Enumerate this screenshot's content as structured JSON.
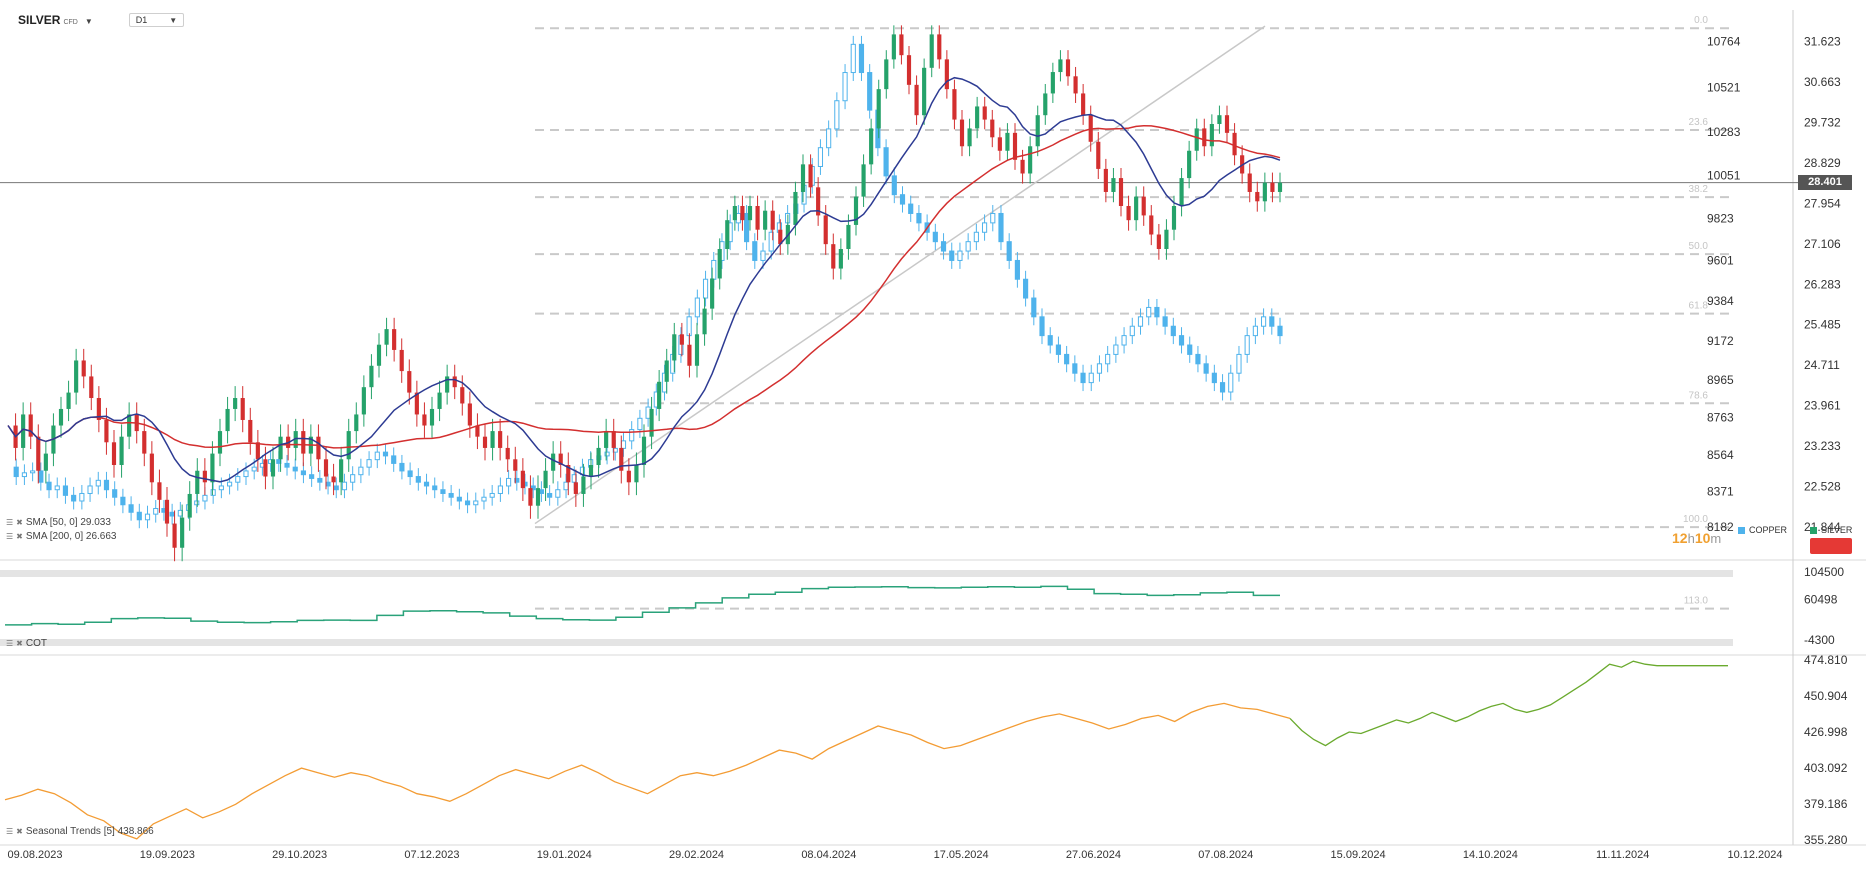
{
  "header": {
    "symbol": "SILVER",
    "symbol_tag": "CFD",
    "timeframe": "D1"
  },
  "indicators": {
    "sma50": {
      "label": "SMA [50, 0] 29.033",
      "color": "#2d3b93"
    },
    "sma200": {
      "label": "SMA [200, 0] 26.663",
      "color": "#d32f2f"
    },
    "cot": {
      "label": "COT",
      "color": "#2aa27a"
    },
    "seasonal": {
      "label": "Seasonal  Trends [5]  438.866",
      "color_past": "#f39c34",
      "color_future": "#6aaa2e"
    }
  },
  "legend": {
    "copper": "COPPER",
    "silver": "SILVER",
    "copper_color": "#4fb3ec",
    "silver_color": "#25a26a"
  },
  "current_price": "28.401",
  "countdown": {
    "h": "12",
    "h_unit": "h",
    "m": "10",
    "m_unit": "m"
  },
  "chart_data": [
    {
      "type": "candlestick",
      "title": "SILVER CFD, D1",
      "x_ticks": [
        "09.08.2023",
        "19.09.2023",
        "29.10.2023",
        "07.12.2023",
        "19.01.2024",
        "29.02.2024",
        "08.04.2024",
        "17.05.2024",
        "27.06.2024",
        "07.08.2024",
        "15.09.2024",
        "14.10.2024",
        "11.11.2024",
        "10.12.2024"
      ],
      "y_right_silver": [
        "31.623",
        "30.663",
        "29.732",
        "28.829",
        "27.954",
        "27.106",
        "26.283",
        "25.485",
        "24.711",
        "23.961",
        "23.233",
        "22.528",
        "21.844"
      ],
      "y_left_copper": [
        "10764",
        "10521",
        "10283",
        "10051",
        "9823",
        "9601",
        "9384",
        "9172",
        "8965",
        "8763",
        "8564",
        "8371",
        "8182"
      ],
      "ylim_silver": [
        21.3,
        32.2
      ],
      "fibonacci_levels": [
        "0.0",
        "23.6",
        "38.2",
        "50.0",
        "61.8",
        "78.6",
        "100.0",
        "113.0"
      ],
      "fibonacci_range": [
        21.84,
        31.95
      ],
      "last_price": 28.401,
      "silver_close": [
        23.6,
        23.2,
        23.8,
        23.4,
        22.8,
        23.1,
        23.6,
        23.9,
        24.2,
        24.8,
        24.5,
        24.1,
        23.7,
        23.3,
        22.9,
        23.4,
        23.8,
        23.5,
        23.1,
        22.6,
        22.3,
        21.9,
        21.5,
        22.0,
        22.4,
        22.8,
        22.6,
        23.1,
        23.5,
        23.9,
        24.1,
        23.7,
        23.3,
        23.0,
        22.7,
        23.0,
        23.4,
        23.2,
        23.5,
        23.1,
        23.4,
        23.0,
        22.7,
        22.6,
        23.0,
        23.5,
        23.8,
        24.3,
        24.7,
        25.1,
        25.4,
        25.0,
        24.6,
        24.2,
        23.8,
        23.6,
        23.9,
        24.2,
        24.5,
        24.3,
        24.0,
        23.6,
        23.4,
        23.2,
        23.5,
        23.2,
        23.0,
        22.8,
        22.5,
        22.2,
        22.5,
        22.8,
        23.1,
        22.9,
        22.6,
        22.4,
        22.7,
        22.9,
        23.2,
        23.5,
        23.2,
        22.8,
        22.6,
        22.9,
        23.4,
        23.9,
        24.4,
        24.8,
        25.3,
        25.1,
        24.7,
        25.3,
        25.8,
        26.4,
        27.0,
        27.6,
        27.9,
        27.6,
        27.9,
        27.4,
        27.8,
        27.4,
        27.1,
        27.5,
        28.2,
        28.8,
        28.3,
        27.7,
        27.1,
        26.6,
        27.0,
        27.5,
        28.1,
        28.8,
        29.6,
        30.5,
        31.2,
        31.8,
        31.3,
        30.6,
        29.9,
        31.0,
        31.8,
        31.2,
        30.5,
        29.8,
        29.2,
        29.6,
        30.1,
        29.8,
        29.4,
        29.1,
        29.5,
        28.9,
        28.6,
        29.2,
        29.9,
        30.4,
        30.9,
        31.2,
        30.8,
        30.4,
        29.9,
        29.3,
        28.7,
        28.2,
        28.5,
        27.9,
        27.6,
        28.1,
        27.7,
        27.3,
        27.0,
        27.4,
        27.9,
        28.5,
        29.1,
        29.6,
        29.2,
        29.7,
        29.9,
        29.5,
        29.0,
        28.6,
        28.2,
        28.0,
        28.4,
        28.2,
        28.4
      ],
      "copper_close": [
        8500,
        8450,
        8470,
        8480,
        8420,
        8380,
        8400,
        8350,
        8320,
        8360,
        8400,
        8430,
        8380,
        8340,
        8300,
        8260,
        8220,
        8250,
        8280,
        8260,
        8240,
        8270,
        8300,
        8320,
        8350,
        8380,
        8400,
        8420,
        8450,
        8480,
        8500,
        8520,
        8540,
        8520,
        8500,
        8480,
        8460,
        8440,
        8420,
        8400,
        8380,
        8420,
        8460,
        8500,
        8540,
        8580,
        8560,
        8520,
        8480,
        8450,
        8420,
        8400,
        8380,
        8360,
        8340,
        8320,
        8300,
        8320,
        8340,
        8360,
        8400,
        8440,
        8420,
        8400,
        8380,
        8360,
        8340,
        8380,
        8420,
        8460,
        8500,
        8540,
        8560,
        8580,
        8600,
        8640,
        8700,
        8760,
        8820,
        8900,
        9000,
        9100,
        9200,
        9300,
        9400,
        9500,
        9600,
        9700,
        9800,
        9850,
        9700,
        9600,
        9650,
        9750,
        9800,
        9850,
        9900,
        10000,
        10100,
        10200,
        10300,
        10450,
        10600,
        10750,
        10600,
        10400,
        10200,
        10050,
        9950,
        9900,
        9850,
        9800,
        9750,
        9700,
        9650,
        9600,
        9650,
        9700,
        9750,
        9800,
        9850,
        9700,
        9600,
        9500,
        9400,
        9300,
        9200,
        9150,
        9100,
        9050,
        9000,
        8950,
        9000,
        9050,
        9100,
        9150,
        9200,
        9250,
        9300,
        9350,
        9300,
        9250,
        9200,
        9150,
        9100,
        9050,
        9000,
        8950,
        8900,
        9000,
        9100,
        9200,
        9250,
        9300,
        9250,
        9200
      ]
    },
    {
      "type": "line",
      "title": "COT",
      "y_ticks": [
        "104500",
        "60498",
        "-4300"
      ],
      "ylim": [
        -4300,
        104500
      ],
      "values": [
        20000,
        22000,
        21000,
        24000,
        30000,
        31000,
        30500,
        26000,
        24000,
        23500,
        25000,
        27000,
        27500,
        27000,
        35000,
        42000,
        42500,
        41000,
        39000,
        34000,
        30000,
        28000,
        27500,
        32000,
        40000,
        47000,
        55000,
        63000,
        69000,
        72000,
        78000,
        80000,
        80500,
        81000,
        79500,
        79000,
        80000,
        81000,
        80000,
        81500,
        77000,
        70000,
        69000,
        67000,
        68000,
        71000,
        72000,
        67000,
        67000
      ]
    },
    {
      "type": "line",
      "title": "Seasonal Trends [5]",
      "y_ticks": [
        "474.810",
        "450.904",
        "426.998",
        "403.092",
        "379.186",
        "355.280"
      ],
      "ylim": [
        355.28,
        474.81
      ],
      "current_value": 438.866,
      "past_values": [
        382,
        385,
        389,
        386,
        380,
        372,
        368,
        360,
        356,
        366,
        371,
        376,
        370,
        374,
        379,
        386,
        392,
        398,
        403,
        400,
        397,
        400,
        398,
        394,
        391,
        386,
        384,
        381,
        386,
        392,
        398,
        402,
        399,
        396,
        401,
        405,
        400,
        394,
        390,
        386,
        392,
        398,
        400,
        398,
        401,
        405,
        410,
        415,
        413,
        409,
        416,
        421,
        426,
        431,
        428,
        425,
        420,
        416,
        418,
        422,
        426,
        430,
        434,
        437,
        439,
        436,
        433,
        429,
        432,
        436,
        438,
        434,
        440,
        444,
        446,
        443,
        442,
        439,
        436
      ],
      "future_values": [
        436,
        428,
        422,
        418,
        423,
        427,
        426,
        429,
        432,
        435,
        433,
        436,
        440,
        437,
        434,
        437,
        441,
        444,
        446,
        442,
        440,
        442,
        445,
        450,
        455,
        460,
        466,
        472,
        470,
        474,
        472,
        471,
        471,
        471,
        471,
        471,
        471,
        471
      ]
    }
  ]
}
